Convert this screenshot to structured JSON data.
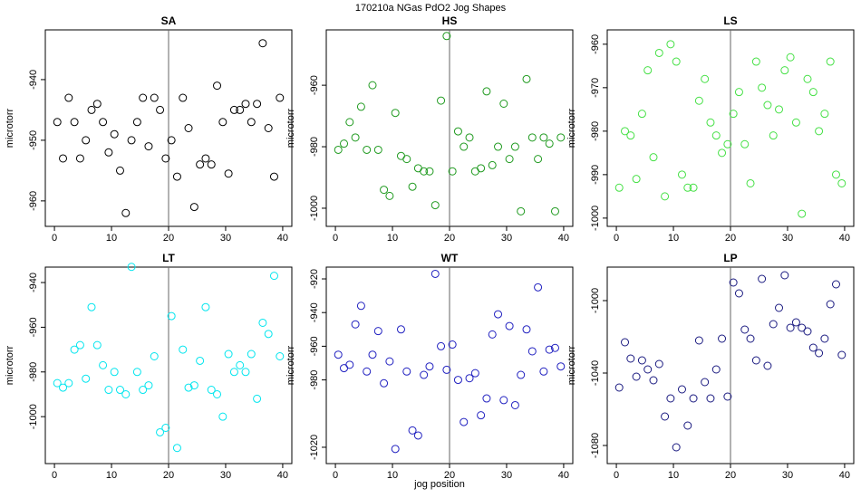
{
  "title": "170210a   NGas PdO2 Jog Shapes",
  "xlabel": "jog position",
  "chart_data": [
    {
      "type": "scatter",
      "title": "SA",
      "ylabel": "microtorr",
      "color": "#000000",
      "x": [
        0.5,
        1.5,
        2.5,
        3.5,
        4.5,
        5.5,
        6.5,
        7.5,
        8.5,
        9.5,
        10.5,
        11.5,
        12.5,
        13.5,
        14.5,
        15.5,
        16.5,
        17.5,
        18.5,
        19.5,
        20.5,
        21.5,
        22.5,
        23.5,
        24.5,
        25.5,
        26.5,
        27.5,
        28.5,
        29.5,
        30.5,
        31.5,
        32.5,
        33.5,
        34.5,
        35.5,
        36.5,
        37.5,
        38.5,
        39.5
      ],
      "values": [
        -947,
        -953,
        -943,
        -947,
        -953,
        -950,
        -945,
        -944,
        -947,
        -952,
        -949,
        -955,
        -962,
        -950,
        -947,
        -943,
        -951,
        -943,
        -945,
        -953,
        -950,
        -956,
        -943,
        -948,
        -961,
        -954,
        -953,
        -954,
        -941,
        -947,
        -955.5,
        -945,
        -945,
        -944,
        -947,
        -944,
        -934,
        -948,
        -956,
        -943
      ],
      "xlim": [
        -1.6,
        41.6
      ],
      "ylim": [
        -964.2,
        -931.8
      ],
      "xticks": [
        0,
        10,
        20,
        30,
        40
      ],
      "yticks": [
        -940,
        -950,
        -960
      ],
      "vline": 20
    },
    {
      "type": "scatter",
      "title": "HS",
      "ylabel": "microtorr",
      "color": "#1f9a1f",
      "x": [
        0.5,
        1.5,
        2.5,
        3.5,
        4.5,
        5.5,
        6.5,
        7.5,
        8.5,
        9.5,
        10.5,
        11.5,
        12.5,
        13.5,
        14.5,
        15.5,
        16.5,
        17.5,
        18.5,
        19.5,
        20.5,
        21.5,
        22.5,
        23.5,
        24.5,
        25.5,
        26.5,
        27.5,
        28.5,
        29.5,
        30.5,
        31.5,
        32.5,
        33.5,
        34.5,
        35.5,
        36.5,
        37.5,
        38.5,
        39.5
      ],
      "values": [
        -981,
        -979,
        -972,
        -977,
        -967,
        -981,
        -960,
        -981,
        -994,
        -996,
        -969,
        -983,
        -984,
        -993,
        -987,
        -988,
        -988,
        -999,
        -965,
        -944,
        -988,
        -975,
        -980,
        -977,
        -988,
        -987,
        -962,
        -986,
        -980,
        -966,
        -984,
        -980,
        -1001,
        -958,
        -977,
        -984,
        -977,
        -979,
        -1001,
        -977
      ],
      "xlim": [
        -1.6,
        41.6
      ],
      "ylim": [
        -1005.9,
        -942
      ],
      "xticks": [
        0,
        10,
        20,
        30,
        40
      ],
      "yticks": [
        -960,
        -980,
        -1000
      ],
      "vline": 20
    },
    {
      "type": "scatter",
      "title": "LS",
      "ylabel": "microtorr",
      "color": "#44e044",
      "x": [
        0.5,
        1.5,
        2.5,
        3.5,
        4.5,
        5.5,
        6.5,
        7.5,
        8.5,
        9.5,
        10.5,
        11.5,
        12.5,
        13.5,
        14.5,
        15.5,
        16.5,
        17.5,
        18.5,
        19.5,
        20.5,
        21.5,
        22.5,
        23.5,
        24.5,
        25.5,
        26.5,
        27.5,
        28.5,
        29.5,
        30.5,
        31.5,
        32.5,
        33.5,
        34.5,
        35.5,
        36.5,
        37.5,
        38.5,
        39.5
      ],
      "values": [
        -993,
        -980,
        -981,
        -991,
        -976,
        -966,
        -986,
        -962,
        -995,
        -960,
        -964,
        -990,
        -993,
        -993,
        -973,
        -968,
        -978,
        -981,
        -985,
        -983,
        -976,
        -971,
        -983,
        -992,
        -964,
        -970,
        -974,
        -981,
        -975,
        -966,
        -963,
        -978,
        -999,
        -968,
        -971,
        -980,
        -976,
        -964,
        -990,
        -992
      ],
      "xlim": [
        -1.6,
        41.6
      ],
      "ylim": [
        -1001.9,
        -956.7
      ],
      "xticks": [
        0,
        10,
        20,
        30,
        40
      ],
      "yticks": [
        -960,
        -970,
        -980,
        -990,
        -1000
      ],
      "vline": 20
    },
    {
      "type": "scatter",
      "title": "LT",
      "ylabel": "microtorr",
      "color": "#00e5ee",
      "x": [
        0.5,
        1.5,
        2.5,
        3.5,
        4.5,
        5.5,
        6.5,
        7.5,
        8.5,
        9.5,
        10.5,
        11.5,
        12.5,
        13.5,
        14.5,
        15.5,
        16.5,
        17.5,
        18.5,
        19.5,
        20.5,
        21.5,
        22.5,
        23.5,
        24.5,
        25.5,
        26.5,
        27.5,
        28.5,
        29.5,
        30.5,
        31.5,
        32.5,
        33.5,
        34.5,
        35.5,
        36.5,
        37.5,
        38.5,
        39.5
      ],
      "values": [
        -985,
        -987,
        -985,
        -970,
        -968,
        -983,
        -951,
        -968,
        -977,
        -988,
        -980,
        -988,
        -990,
        -933,
        -980,
        -988,
        -986,
        -973,
        -1007,
        -1005,
        -955,
        -1014,
        -970,
        -987,
        -986,
        -975,
        -951,
        -988,
        -990,
        -1000,
        -972,
        -980,
        -977,
        -980,
        -972,
        -992,
        -958,
        -963,
        -937,
        -973
      ],
      "xlim": [
        -1.6,
        41.6
      ],
      "ylim": [
        -1021,
        -933.1
      ],
      "xticks": [
        0,
        10,
        20,
        30,
        40
      ],
      "yticks": [
        -940,
        -960,
        -980,
        -1000
      ],
      "vline": 20
    },
    {
      "type": "scatter",
      "title": "WT",
      "ylabel": "microtorr",
      "color": "#2020c0",
      "x": [
        0.5,
        1.5,
        2.5,
        3.5,
        4.5,
        5.5,
        6.5,
        7.5,
        8.5,
        9.5,
        10.5,
        11.5,
        12.5,
        13.5,
        14.5,
        15.5,
        16.5,
        17.5,
        18.5,
        19.5,
        20.5,
        21.5,
        22.5,
        23.5,
        24.5,
        25.5,
        26.5,
        27.5,
        28.5,
        29.5,
        30.5,
        31.5,
        32.5,
        33.5,
        34.5,
        35.5,
        36.5,
        37.5,
        38.5,
        39.5
      ],
      "values": [
        -965,
        -973,
        -971,
        -947,
        -936,
        -975,
        -965,
        -951,
        -982,
        -969,
        -1021,
        -950,
        -975,
        -1010,
        -1013,
        -977,
        -972,
        -917,
        -960,
        -974,
        -959,
        -980,
        -1005,
        -979,
        -976,
        -1001,
        -991,
        -953,
        -941,
        -992,
        -948,
        -995,
        -977,
        -950,
        -963,
        -925,
        -975,
        -962,
        -961,
        -972
      ],
      "xlim": [
        -1.6,
        41.6
      ],
      "ylim": [
        -1029.7,
        -913
      ],
      "xticks": [
        0,
        10,
        20,
        30,
        40
      ],
      "yticks": [
        -920,
        -940,
        -960,
        -980,
        -1020
      ],
      "vline": 20
    },
    {
      "type": "scatter",
      "title": "LP",
      "ylabel": "microtorr",
      "color": "#1a1a80",
      "x": [
        0.5,
        1.5,
        2.5,
        3.5,
        4.5,
        5.5,
        6.5,
        7.5,
        8.5,
        9.5,
        10.5,
        11.5,
        12.5,
        13.5,
        14.5,
        15.5,
        16.5,
        17.5,
        18.5,
        19.5,
        20.5,
        21.5,
        22.5,
        23.5,
        24.5,
        25.5,
        26.5,
        27.5,
        28.5,
        29.5,
        30.5,
        31.5,
        32.5,
        33.5,
        34.5,
        35.5,
        36.5,
        37.5,
        38.5,
        39.5
      ],
      "values": [
        -1048,
        -1023,
        -1032,
        -1042,
        -1033,
        -1038,
        -1044,
        -1035,
        -1064,
        -1054,
        -1081,
        -1049,
        -1069,
        -1054,
        -1022,
        -1045,
        -1054,
        -1038,
        -1021,
        -1053,
        -990,
        -996,
        -1016,
        -1021,
        -1033,
        -988,
        -1036,
        -1013,
        -1004,
        -986,
        -1015,
        -1012,
        -1015,
        -1017,
        -1026,
        -1029,
        -1021,
        -1002,
        -991,
        -1030
      ],
      "xlim": [
        -1.6,
        41.6
      ],
      "ylim": [
        -1090,
        -981.5
      ],
      "xticks": [
        0,
        10,
        20,
        30,
        40
      ],
      "yticks": [
        -1000,
        -1040,
        -1080
      ],
      "vline": 20
    }
  ]
}
